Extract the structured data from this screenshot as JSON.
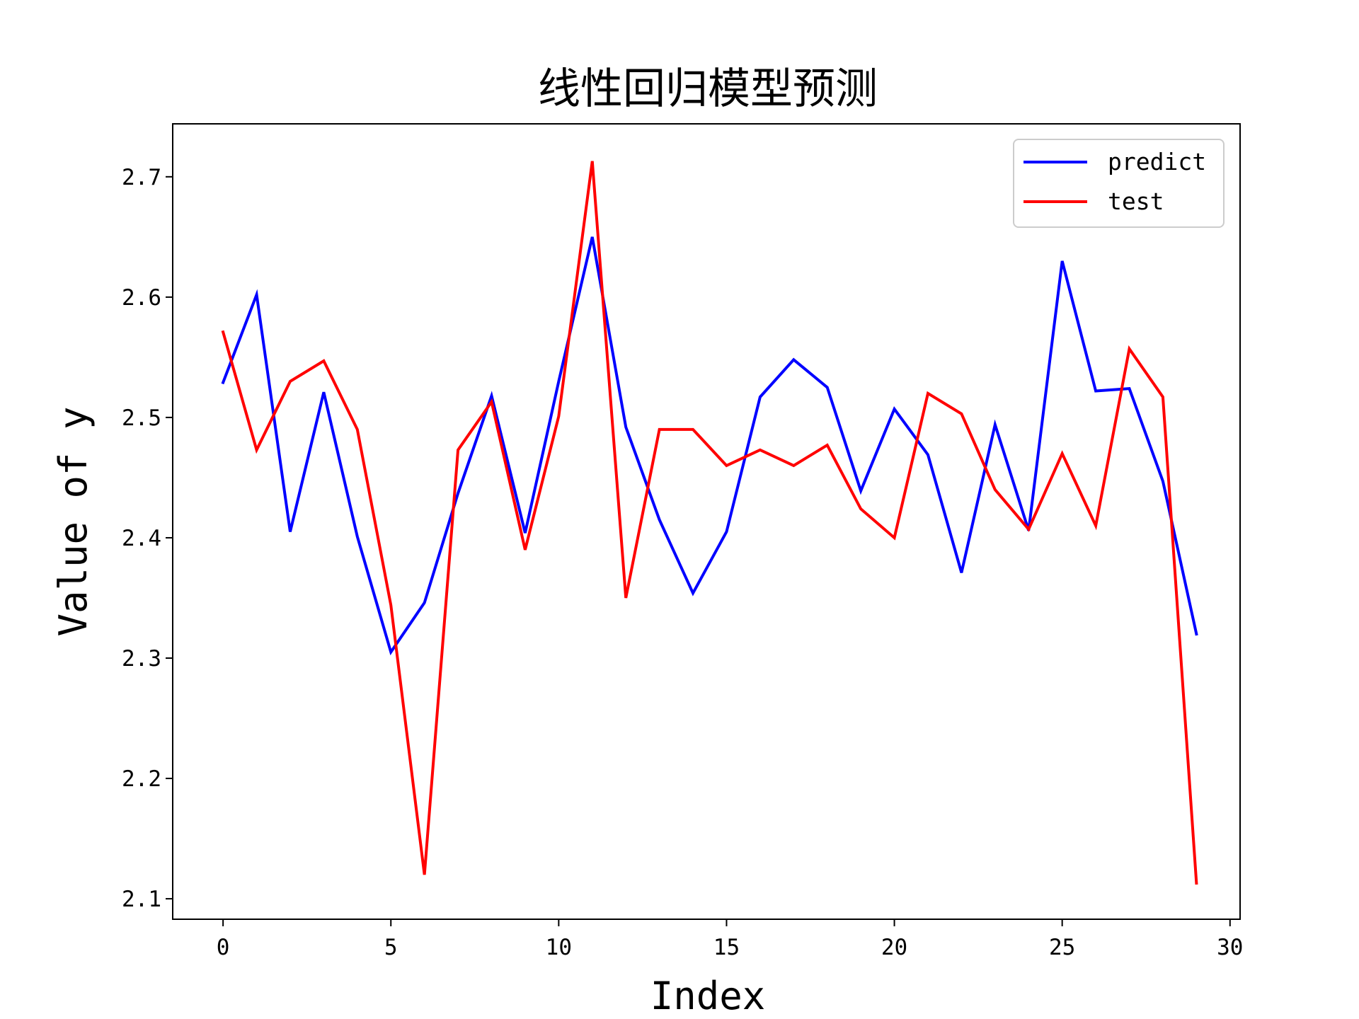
{
  "chart_data": {
    "type": "line",
    "title": "线性回归模型预测",
    "xlabel": "Index",
    "ylabel": "Value of y",
    "xlim": [
      -1.5,
      30.3
    ],
    "ylim": [
      2.083,
      2.744
    ],
    "x_ticks": [
      0,
      5,
      10,
      15,
      20,
      25,
      30
    ],
    "x_tick_labels": [
      "0",
      "5",
      "10",
      "15",
      "20",
      "25",
      "30"
    ],
    "y_ticks": [
      2.1,
      2.2,
      2.3,
      2.4,
      2.5,
      2.6,
      2.7
    ],
    "y_tick_labels": [
      "2.1",
      "2.2",
      "2.3",
      "2.4",
      "2.5",
      "2.6",
      "2.7"
    ],
    "grid": false,
    "legend_position": "top-right",
    "x": [
      0,
      1,
      2,
      3,
      4,
      5,
      6,
      7,
      8,
      9,
      10,
      11,
      12,
      13,
      14,
      15,
      16,
      17,
      18,
      19,
      20,
      21,
      22,
      23,
      24,
      25,
      26,
      27,
      28,
      29
    ],
    "series": [
      {
        "name": "predict",
        "color": "#0000ff",
        "values": [
          2.529,
          2.602,
          2.405,
          2.521,
          2.401,
          2.305,
          2.346,
          2.437,
          2.518,
          2.404,
          2.53,
          2.65,
          2.492,
          2.415,
          2.354,
          2.405,
          2.517,
          2.548,
          2.525,
          2.439,
          2.507,
          2.469,
          2.371,
          2.494,
          2.406,
          2.63,
          2.522,
          2.524,
          2.447,
          2.32
        ]
      },
      {
        "name": "test",
        "color": "#ff0000",
        "values": [
          2.571,
          2.473,
          2.53,
          2.547,
          2.49,
          2.344,
          2.12,
          2.473,
          2.513,
          2.39,
          2.501,
          2.713,
          2.35,
          2.49,
          2.49,
          2.46,
          2.473,
          2.46,
          2.477,
          2.424,
          2.4,
          2.52,
          2.503,
          2.44,
          2.407,
          2.47,
          2.41,
          2.557,
          2.517,
          2.113
        ]
      }
    ]
  }
}
